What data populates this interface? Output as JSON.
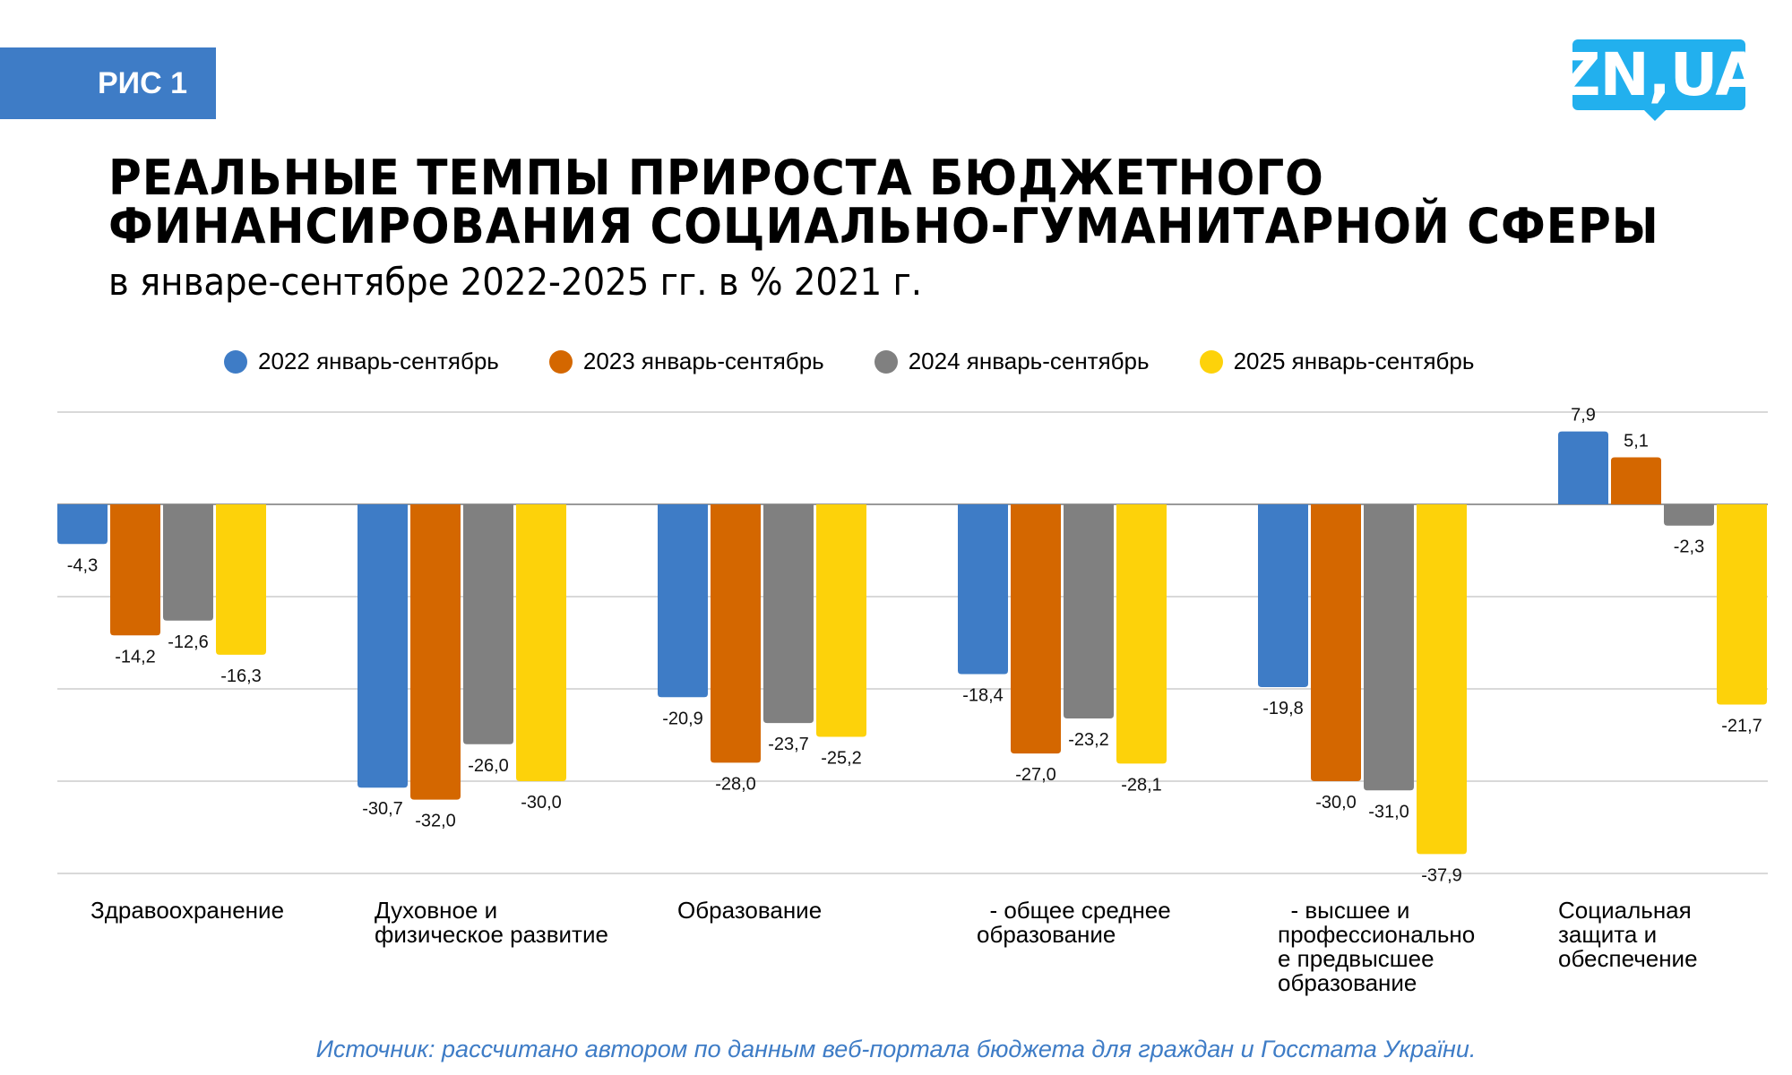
{
  "badge": {
    "label": "РИС 1"
  },
  "logo": {
    "text": "ZN,UA"
  },
  "header": {
    "title_line1": "РЕАЛЬНЫЕ ТЕМПЫ ПРИРОСТА БЮДЖЕТНОГО",
    "title_line2": "ФИНАНСИРОВАНИЯ СОЦИАЛЬНО-ГУМАНИТАРНОЙ СФЕРЫ",
    "subtitle": "в январе-сентябре 2022-2025 гг. в % 2021 г."
  },
  "colors": {
    "badge": "#3e7cc6",
    "logo": "#22b0ee",
    "source": "#3e7cc6",
    "series": [
      "#3e7cc6",
      "#d46700",
      "#808080",
      "#fdd20a"
    ]
  },
  "chart_data": {
    "type": "bar",
    "title": "РЕАЛЬНЫЕ ТЕМПЫ ПРИРОСТА БЮДЖЕТНОГО ФИНАНСИРОВАНИЯ СОЦИАЛЬНО-ГУМАНИТАРНОЙ СФЕРЫ",
    "subtitle": "в январе-сентябре 2022-2025 гг. в % 2021 г.",
    "xlabel": "",
    "ylabel": "",
    "ylim": [
      -40,
      10
    ],
    "gridlines": [
      10,
      0,
      -10,
      -20,
      -30,
      -40
    ],
    "grid": true,
    "legend_position": "top",
    "categories": [
      "Здравоохранение",
      "Духовное и\nфизическое развитие",
      "Образование",
      "  - общее среднее\nобразование",
      "  - высшее и\nпрофессионально\nе предвысшее\nобразование",
      "Социальная\nзащита и\nобеспечение"
    ],
    "series": [
      {
        "name": "2022 январь-сентябрь",
        "values": [
          -4.3,
          -30.7,
          -20.9,
          -18.4,
          -19.8,
          7.9
        ],
        "labels": [
          "-4,3",
          "-30,7",
          "-20,9",
          "-18,4",
          "-19,8",
          "7,9"
        ]
      },
      {
        "name": "2023 январь-сентябрь",
        "values": [
          -14.2,
          -32.0,
          -28.0,
          -27.0,
          -30.0,
          5.1
        ],
        "labels": [
          "-14,2",
          "-32,0",
          "-28,0",
          "-27,0",
          "-30,0",
          "5,1"
        ]
      },
      {
        "name": "2024 январь-сентябрь",
        "values": [
          -12.6,
          -26.0,
          -23.7,
          -23.2,
          -31.0,
          -2.3
        ],
        "labels": [
          "-12,6",
          "-26,0",
          "-23,7",
          "-23,2",
          "-31,0",
          "-2,3"
        ]
      },
      {
        "name": "2025 январь-сентябрь",
        "values": [
          -16.3,
          -30.0,
          -25.2,
          -28.1,
          -37.9,
          -21.7
        ],
        "labels": [
          "-16,3",
          "-30,0",
          "-25,2",
          "-28,1",
          "-37,9",
          "-21,7"
        ]
      }
    ]
  },
  "footer": {
    "source": "Источник: рассчитано автором по данным веб-портала бюджета для граждан и Госстата України."
  }
}
